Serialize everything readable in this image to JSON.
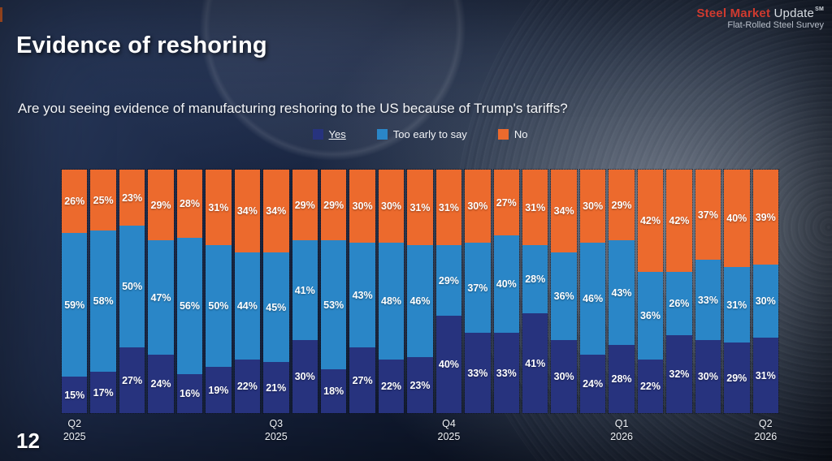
{
  "slide": {
    "page_number": "12",
    "title": "Evidence of reshoring",
    "question": "Are you seeing evidence of manufacturing reshoring to the US because of Trump's tariffs?"
  },
  "logo": {
    "brand_primary": "Steel Market",
    "brand_secondary": "Update",
    "trademark": "SM",
    "subtitle": "Flat-Rolled Steel Survey"
  },
  "legend": [
    {
      "label": "Yes",
      "color": "#27337e",
      "underline": true
    },
    {
      "label": "Too early to say",
      "color": "#2a86c7",
      "underline": false
    },
    {
      "label": "No",
      "color": "#ec6a2d",
      "underline": false
    }
  ],
  "chart_data": {
    "type": "bar",
    "stacked": true,
    "percent": true,
    "ylim": [
      0,
      100
    ],
    "title": "Evidence of reshoring",
    "legend_position": "top",
    "series": [
      {
        "name": "Yes",
        "color": "#27337e",
        "values": [
          15,
          17,
          27,
          24,
          16,
          19,
          22,
          21,
          30,
          18,
          27,
          22,
          23,
          40,
          33,
          33,
          41,
          30,
          24,
          28,
          22,
          32,
          30,
          29,
          31
        ]
      },
      {
        "name": "Too early to say",
        "color": "#2a86c7",
        "values": [
          59,
          58,
          50,
          47,
          56,
          50,
          44,
          45,
          41,
          53,
          43,
          48,
          46,
          29,
          37,
          40,
          28,
          36,
          46,
          43,
          36,
          26,
          33,
          31,
          30
        ]
      },
      {
        "name": "No",
        "color": "#ec6a2d",
        "values": [
          26,
          25,
          23,
          29,
          28,
          31,
          34,
          34,
          29,
          29,
          30,
          30,
          31,
          31,
          30,
          27,
          31,
          34,
          30,
          29,
          42,
          42,
          37,
          40,
          39
        ]
      }
    ],
    "x_axis_labels": [
      {
        "line1": "Q2",
        "line2": "2025",
        "bar_index": 0
      },
      {
        "line1": "Q3",
        "line2": "2025",
        "bar_index": 7
      },
      {
        "line1": "Q4",
        "line2": "2025",
        "bar_index": 13
      },
      {
        "line1": "Q1",
        "line2": "2026",
        "bar_index": 19
      },
      {
        "line1": "Q2",
        "line2": "2026",
        "bar_index": 24
      }
    ]
  }
}
